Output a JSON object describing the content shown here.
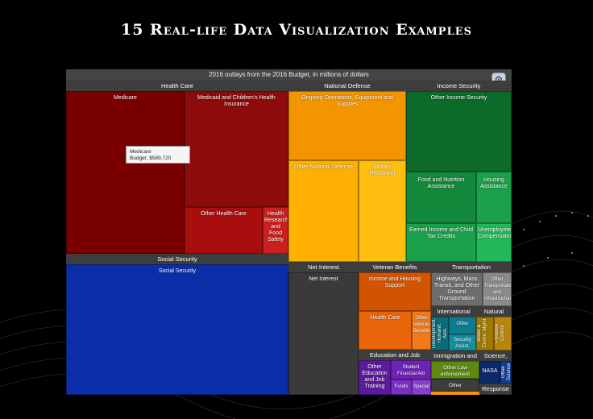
{
  "heading": "15 Real-life Data Visualization Examples",
  "colors": {
    "health": "#8b0000",
    "defense": "#ffa500",
    "income": "#1a7a3a",
    "social": "#0b2ea8",
    "netint": "#3a3a3a",
    "veteran": "#e06010",
    "education": "#6a1aa8",
    "transport": "#7a7a7a"
  },
  "chart_data": {
    "type": "treemap",
    "title": "2016 outlays from the 2016 Budget, in millions of dollars",
    "tooltip": {
      "name": "Medicare",
      "label": "Budget:",
      "value": "$589,720"
    },
    "groups": [
      {
        "name": "Health Care",
        "children": [
          "Medicare",
          "Medicaid and Children's Health Insurance",
          "Other Health Care",
          "Health Research and Food Safety"
        ]
      },
      {
        "name": "National Defense",
        "children": [
          "Ongoing Operations, Equipment and Supplies",
          "Other National Defense",
          "Military Personnel"
        ]
      },
      {
        "name": "Income Security",
        "children": [
          "Other Income Security",
          "Food and Nutrition Assistance",
          "Housing Assistance",
          "Earned Income and Child Tax Credits",
          "Unemployment Compensation"
        ]
      },
      {
        "name": "Social Security",
        "children": [
          "Social Security"
        ]
      },
      {
        "name": "Net Interest",
        "children": [
          "Net Interest"
        ]
      },
      {
        "name": "Veteran Benefits",
        "children": [
          "Income and Housing Support",
          "Health Care",
          "Other Veterans Benefits"
        ]
      },
      {
        "name": "Transportation",
        "children": [
          "Highways, Mass Transit, and Other Ground Transportation",
          "Other Transportation and Infrastructure"
        ]
      },
      {
        "name": "Education and Job",
        "children": [
          "Other Education and Job Training",
          "Student Financial Aid",
          "Funds",
          "Special"
        ]
      },
      {
        "name": "International",
        "children": [
          "Development, Humanit. Asst.",
          "Other",
          "Security Assist."
        ]
      },
      {
        "name": "Natural",
        "children": [
          "Water & Envirn. Mgmt",
          "Pollution Control"
        ]
      },
      {
        "name": "Immigration and",
        "children": [
          "Other Law enforcement",
          "Other"
        ]
      },
      {
        "name": "Science,",
        "children": [
          "NASA",
          "Other Science"
        ]
      },
      {
        "name": "Response",
        "children": []
      }
    ]
  },
  "labels": {
    "health_head": "Health Care",
    "medicare": "Medicare",
    "medicaid": "Medicaid and Children's Health Insurance",
    "other_health": "Other Health Care",
    "health_research": "Health Research and Food Safety",
    "defense_head": "National Defense",
    "ongoing": "Ongoing Operations, Equipment and Supplies",
    "other_defense": "Other National Defense",
    "military": "Military Personnel",
    "income_head": "Income Security",
    "other_income": "Other Income Security",
    "food": "Food and Nutrition Assistance",
    "housing": "Housing Assistance",
    "earned": "Earned Income and Child Tax Credits",
    "unemploy": "Unemployment Compensation",
    "ss_head": "Social Security",
    "ss": "Social Security",
    "netint_head": "Net Interest",
    "netint": "Net Interest",
    "vet_head": "Veteran Benefits",
    "vet_income": "Income and Housing Support",
    "vet_health": "Health Care",
    "vet_other": "Other Veterans Benefits",
    "trans_head": "Transportation",
    "highways": "Highways, Mass Transit, and Other Ground Transportation",
    "other_trans": "Other Transportation and Infrastructure",
    "edu_head": "Education and Job",
    "edu_other": "Other Education and Job Training",
    "student": "Student Financial Aid",
    "funds": "Funds",
    "special": "Special",
    "intl_head": "International",
    "dev": "Development, Humanit. Asst.",
    "intl_other": "Other",
    "security": "Security Assist.",
    "natural_head": "Natural",
    "water": "Water & Envirn. Mgmt",
    "pollution": "Pollution Control",
    "immig_head": "Immigration and",
    "law": "Other Law enforcement",
    "immig_other": "Other",
    "science_head": "Science,",
    "nasa": "NASA",
    "other_science": "Other Science",
    "response": "Response"
  }
}
